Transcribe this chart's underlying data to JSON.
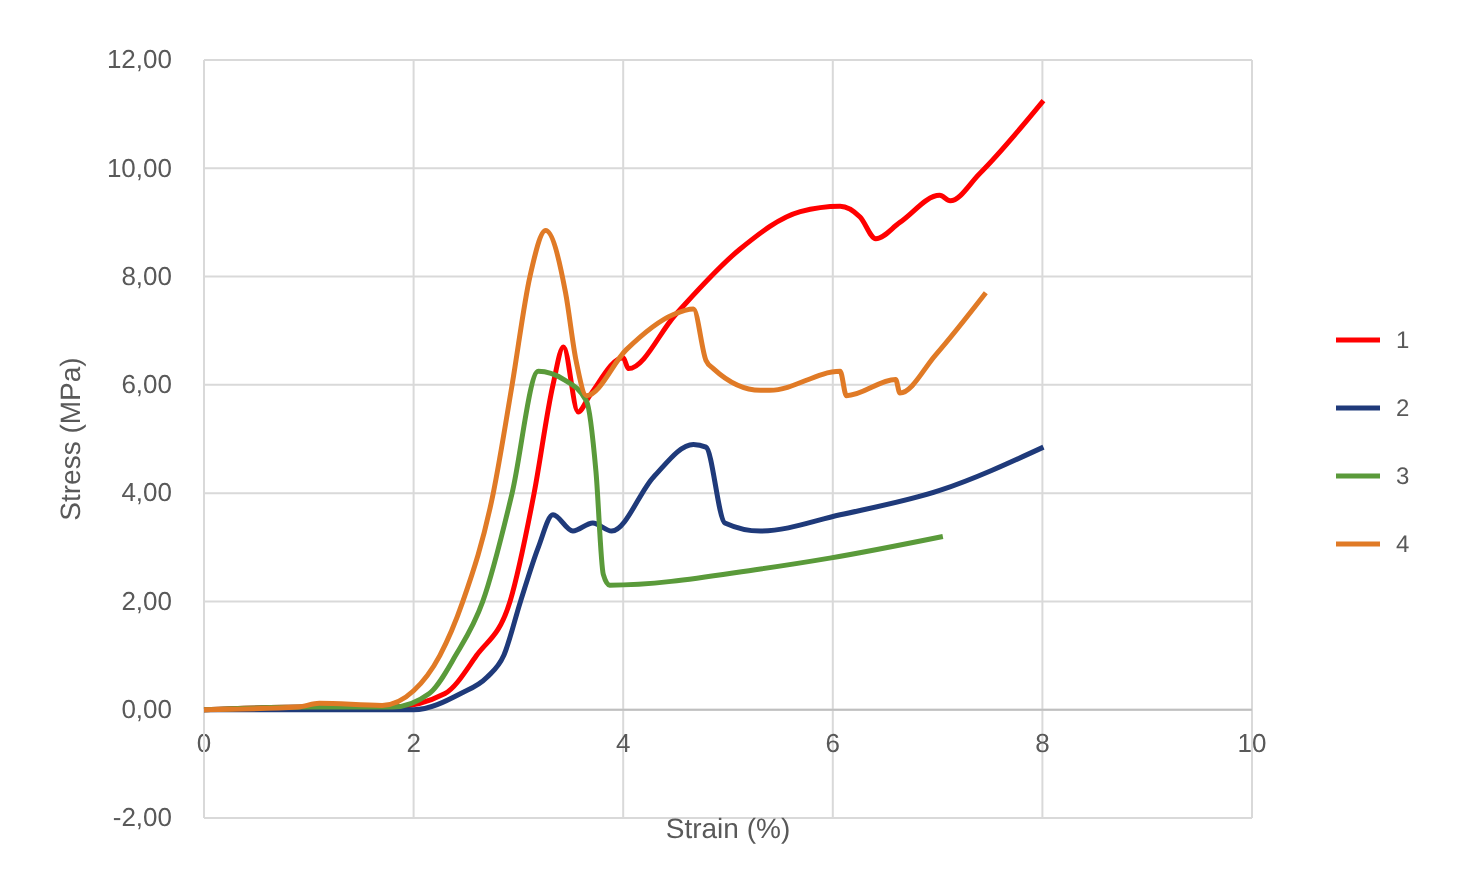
{
  "chart_data": {
    "type": "line",
    "xlabel": "Strain (%)",
    "ylabel": "Stress (MPa)",
    "xlim": [
      0,
      10
    ],
    "xticks": [
      0,
      2,
      4,
      6,
      8,
      10
    ],
    "ylim": [
      -2,
      12
    ],
    "yticks": [
      {
        "value": -2,
        "label": "-2,00"
      },
      {
        "value": 0,
        "label": "0,00"
      },
      {
        "value": 2,
        "label": "2,00"
      },
      {
        "value": 4,
        "label": "4,00"
      },
      {
        "value": 6,
        "label": "6,00"
      },
      {
        "value": 8,
        "label": "8,00"
      },
      {
        "value": 10,
        "label": "10,00"
      },
      {
        "value": 12,
        "label": "12,00"
      }
    ],
    "grid": true,
    "legend": "right",
    "marker": "none",
    "line_style": "solid",
    "series": [
      {
        "name": "1",
        "color": "#ff0000",
        "x": [
          0,
          1,
          1.8,
          2.3,
          2.6,
          2.92,
          3.15,
          3.33,
          3.43,
          3.57,
          3.68,
          4.0,
          4.05,
          4.5,
          5.11,
          5.69,
          6.07,
          6.26,
          6.41,
          6.64,
          7.02,
          7.12,
          7.4,
          8.01
        ],
        "values": [
          0,
          0.05,
          0.05,
          0.3,
          1.0,
          2,
          4,
          6,
          6.7,
          5.5,
          5.8,
          6.5,
          6.3,
          7.3,
          8.5,
          9.2,
          9.3,
          9.1,
          8.7,
          9.0,
          9.5,
          9.4,
          9.9,
          11.25
        ]
      },
      {
        "name": "2",
        "color": "#1f3a7a",
        "x": [
          0,
          1,
          2.0,
          2.45,
          2.7,
          2.86,
          3.02,
          3.19,
          3.33,
          3.52,
          3.71,
          3.89,
          4.29,
          4.67,
          4.79,
          4.97,
          5.31,
          6.07,
          7.02,
          8.01
        ],
        "values": [
          0,
          0,
          0,
          0.3,
          0.6,
          1,
          2,
          3,
          3.6,
          3.3,
          3.45,
          3.3,
          4.3,
          4.9,
          4.85,
          3.45,
          3.3,
          3.6,
          4.05,
          4.85
        ]
      },
      {
        "name": "3",
        "color": "#5a9a3a",
        "x": [
          0,
          1,
          1.8,
          2.15,
          2.4,
          2.66,
          2.94,
          3.19,
          3.43,
          3.65,
          3.74,
          3.81,
          3.87,
          5.31,
          5.97,
          7.05
        ],
        "values": [
          0,
          0.05,
          0.05,
          0.3,
          1.0,
          2,
          4,
          6.25,
          6.1,
          5.7,
          4.4,
          2.5,
          2.3,
          2.6,
          2.8,
          3.2
        ]
      },
      {
        "name": "4",
        "color": "#e07a26",
        "x": [
          0,
          0.9,
          1.1,
          1.7,
          2.0,
          2.25,
          2.47,
          2.76,
          2.94,
          3.11,
          3.26,
          3.45,
          3.55,
          3.65,
          4.03,
          4.48,
          4.67,
          4.79,
          4.86,
          5.31,
          5.4,
          6.07,
          6.13,
          6.6,
          6.64,
          6.98,
          7.46
        ],
        "values": [
          0,
          0.05,
          0.12,
          0.08,
          0.35,
          1.0,
          2,
          4,
          6,
          8,
          8.85,
          7.7,
          6.45,
          5.8,
          6.65,
          7.3,
          7.4,
          6.45,
          6.3,
          5.9,
          5.9,
          6.25,
          5.8,
          6.1,
          5.85,
          6.55,
          7.7
        ]
      }
    ]
  }
}
